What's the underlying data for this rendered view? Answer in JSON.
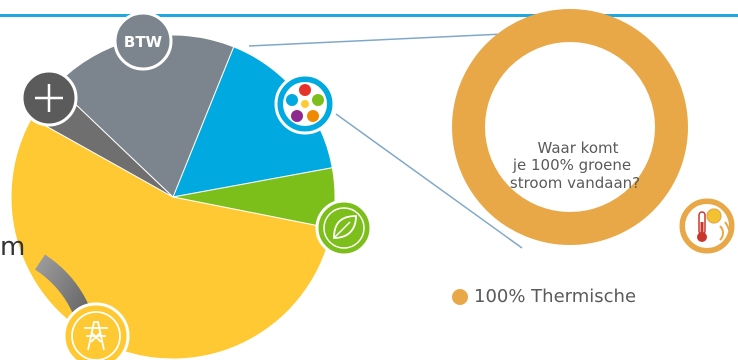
{
  "chart_data": [
    {
      "type": "pie",
      "title": "",
      "series": [
        {
          "name": "",
          "value": 16,
          "color": "#00a9e0"
        },
        {
          "name": "",
          "value": 6,
          "color": "#7dbf1a"
        },
        {
          "name": "",
          "value": 55,
          "color": "#ffc933"
        },
        {
          "name": "",
          "value": 4,
          "color": "#6f6f70"
        },
        {
          "name": "",
          "value": 19,
          "color": "#7c858d"
        }
      ],
      "badges": [
        {
          "icon": "btw-badge-icon",
          "text": "BTW",
          "color": "#7c858d"
        },
        {
          "icon": "plus-badge-icon",
          "color": "#5b5b5c"
        },
        {
          "icon": "multicolor-star-icon",
          "color": "#00a9e0"
        },
        {
          "icon": "leaf-icon",
          "color": "#7dbf1a"
        },
        {
          "icon": "power-pylon-icon",
          "color": "#ffc933"
        }
      ]
    },
    {
      "type": "pie",
      "title": "",
      "center_text": [
        "Waar komt",
        "je 100% groene",
        "stroom vandaan?"
      ],
      "series": [
        {
          "name": "100% Thermische",
          "value": 100,
          "color": "#e8a848"
        }
      ],
      "badge": {
        "icon": "thermometer-sun-icon",
        "color": "#e8a848"
      }
    }
  ],
  "stray_text": "m"
}
